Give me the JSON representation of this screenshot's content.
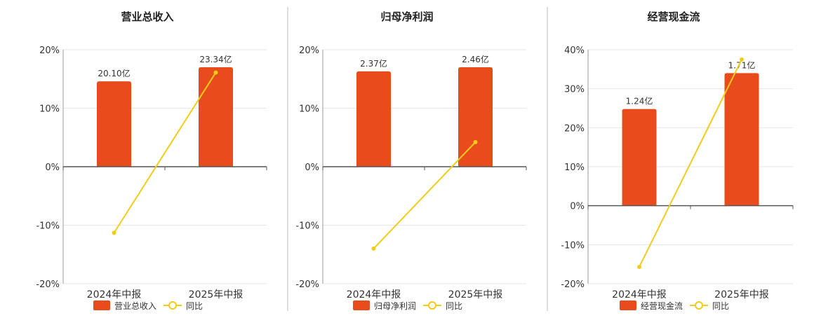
{
  "colors": {
    "bar": "#E84C1C",
    "line": "#F2CC1A",
    "grid": "#E6E6E6",
    "axis": "#555555",
    "divider": "#BBBBBB",
    "text": "#333333"
  },
  "legend_series": {
    "line_label": "同比"
  },
  "chart_data": [
    {
      "type": "bar",
      "title": "营业总收入",
      "categories": [
        "2024年中报",
        "2025年中报"
      ],
      "ylim": [
        -20,
        20
      ],
      "yticks": [
        -20,
        -10,
        0,
        10,
        20
      ],
      "ytick_labels": [
        "-20%",
        "-10%",
        "0%",
        "10%",
        "20%"
      ],
      "series": [
        {
          "name": "营业总收入",
          "kind": "bar",
          "values": [
            14.6,
            17.0
          ],
          "labels": [
            "20.10亿",
            "23.34亿"
          ]
        },
        {
          "name": "同比",
          "kind": "line",
          "values": [
            -11.3,
            16.1
          ]
        }
      ],
      "legend": "bottom"
    },
    {
      "type": "bar",
      "title": "归母净利润",
      "categories": [
        "2024年中报",
        "2025年中报"
      ],
      "ylim": [
        -20,
        20
      ],
      "yticks": [
        -20,
        -10,
        0,
        10,
        20
      ],
      "ytick_labels": [
        "-20%",
        "-10%",
        "0%",
        "10%",
        "20%"
      ],
      "series": [
        {
          "name": "归母净利润",
          "kind": "bar",
          "values": [
            16.3,
            17.0
          ],
          "labels": [
            "2.37亿",
            "2.46亿"
          ]
        },
        {
          "name": "同比",
          "kind": "line",
          "values": [
            -14.0,
            4.2
          ]
        }
      ],
      "legend": "bottom"
    },
    {
      "type": "bar",
      "title": "经营现金流",
      "categories": [
        "2024年中报",
        "2025年中报"
      ],
      "ylim": [
        -20,
        40
      ],
      "yticks": [
        -20,
        -10,
        0,
        10,
        20,
        30,
        40
      ],
      "ytick_labels": [
        "-20%",
        "-10%",
        "0%",
        "10%",
        "20%",
        "30%",
        "40%"
      ],
      "series": [
        {
          "name": "经营现金流",
          "kind": "bar",
          "values": [
            24.8,
            34.0
          ],
          "labels": [
            "1.24亿",
            "1.71亿"
          ]
        },
        {
          "name": "同比",
          "kind": "line",
          "values": [
            -15.7,
            37.5
          ]
        }
      ],
      "legend": "bottom"
    }
  ]
}
